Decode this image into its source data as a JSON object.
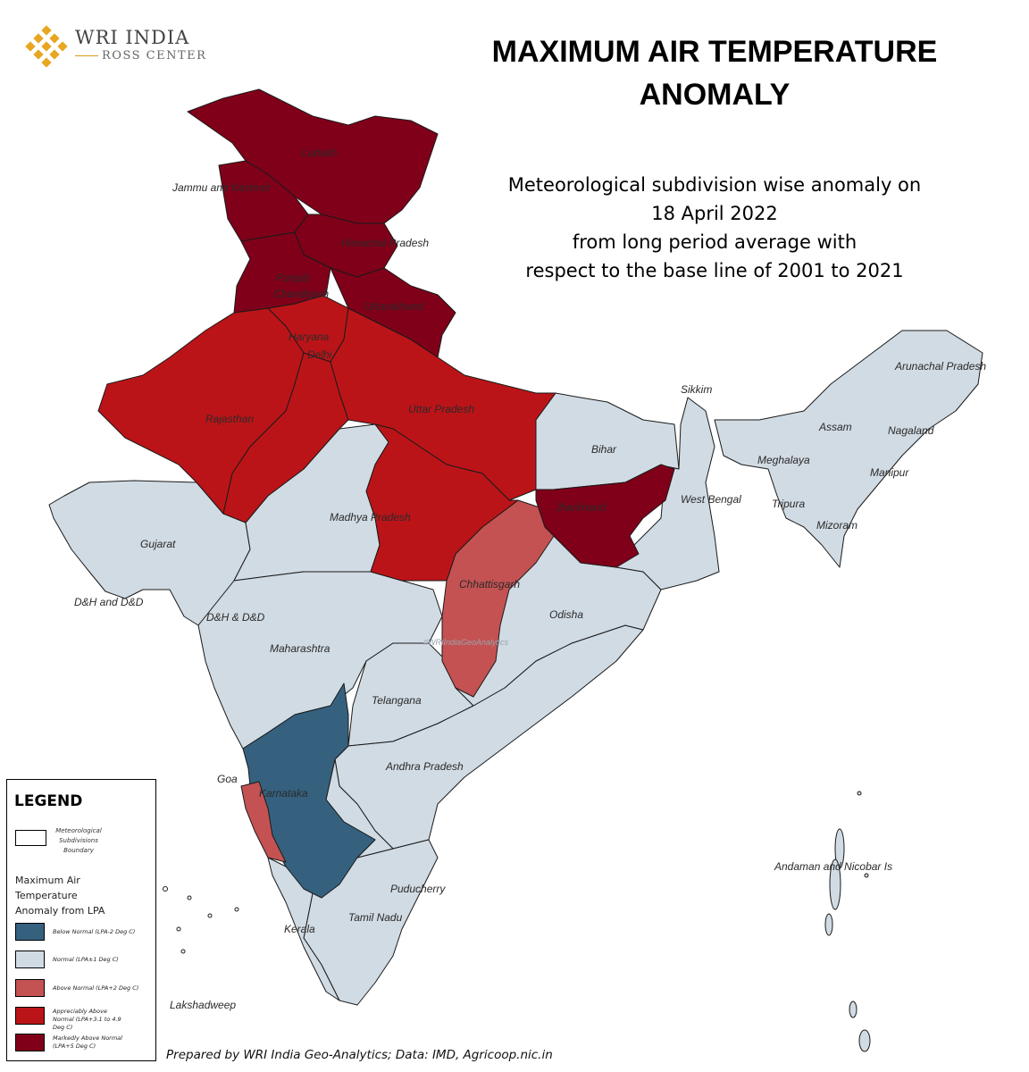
{
  "header": {
    "logo_name": "WRI INDIA",
    "logo_sub": "ROSS CENTER",
    "title_line1": "MAXIMUM AIR TEMPERATURE",
    "title_line2": "ANOMALY",
    "subtitle_line1": "Meteorological subdivision wise anomaly on",
    "subtitle_line2": "18 April 2022",
    "subtitle_line3": "from long period average with",
    "subtitle_line4": "respect to the base line of 2001 to 2021"
  },
  "colors": {
    "below_normal": "#35617f",
    "normal": "#d1dbe3",
    "above_normal": "#c45253",
    "appreciably_above": "#bb1418",
    "markedly_above": "#800019",
    "boundary": "#1a1a1a",
    "logo_gold": "#e8a621"
  },
  "map_labels": {
    "ladakh": "Ladakh",
    "jammu_kashmir": "Jammu and Kashmir",
    "himachal": "Himachal Pradesh",
    "punjab": "Punjab",
    "chandigarh": "Chandigarh",
    "uttarakhand": "Uttarakhand",
    "haryana": "Haryana",
    "delhi": "Delhi",
    "rajasthan": "Rajasthan",
    "uttar_pradesh": "Uttar Pradesh",
    "bihar": "Bihar",
    "sikkim": "Sikkim",
    "arunachal": "Arunachal Pradesh",
    "assam": "Assam",
    "nagaland": "Nagaland",
    "meghalaya": "Meghalaya",
    "manipur": "Manipur",
    "tripura": "Tripura",
    "mizoram": "Mizoram",
    "west_bengal": "West Bengal",
    "jharkhand": "Jharkhand",
    "madhya_pradesh": "Madhya Pradesh",
    "gujarat": "Gujarat",
    "dh_and_dd_west": "D&H and D&D",
    "dh_dd": "D&H & D&D",
    "chhattisgarh": "Chhattisgarh",
    "odisha": "Odisha",
    "maharashtra": "Maharashtra",
    "telangana": "Telangana",
    "andhra": "Andhra Pradesh",
    "goa": "Goa",
    "karnataka": "Karnataka",
    "andaman": "Andaman and Nicobar Is",
    "puducherry": "Puducherry",
    "tamil_nadu": "Tamil Nadu",
    "kerala": "Kerala",
    "lakshadweep": "Lakshadweep"
  },
  "watermark": "#WRIIndiaGeoAnalytics",
  "legend": {
    "title": "LEGEND",
    "boundary_label": "Meteorological Subdivisions Boundary",
    "heading_line1": "Maximum Air",
    "heading_line2": "Temperature",
    "heading_line3": "Anomaly from LPA",
    "items": [
      {
        "label": "Below Normal (LPA-2 Deg C)"
      },
      {
        "label": "Normal (LPA±1 Deg C)"
      },
      {
        "label": "Above Normal (LPA+2 Deg C)"
      },
      {
        "label": "Appreciably Above Normal (LPA+3.1 to 4.9 Deg C)"
      },
      {
        "label": "Markedly Above Normal (LPA+5 Deg C)"
      }
    ]
  },
  "credit": "Prepared by WRI India Geo-Analytics; Data: IMD, Agricoop.nic.in"
}
